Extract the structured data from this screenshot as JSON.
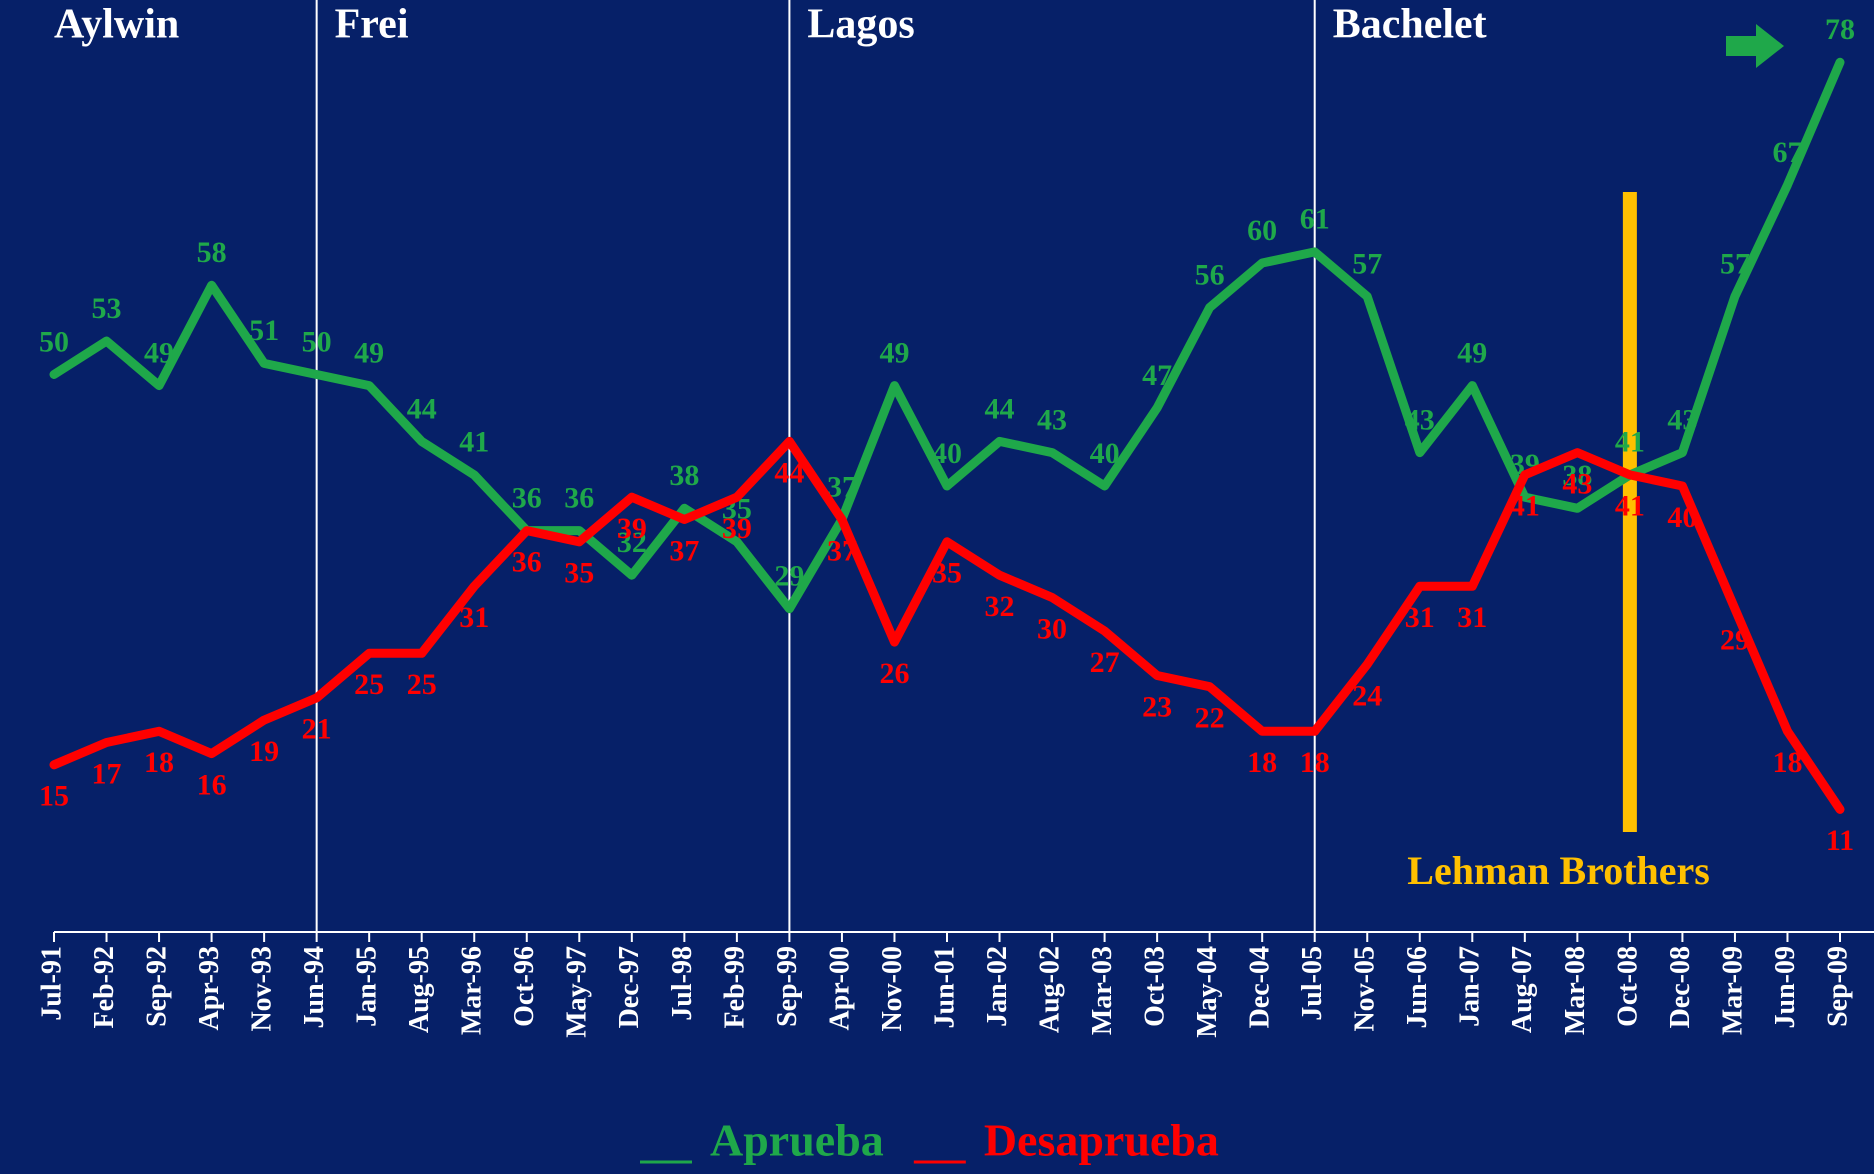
{
  "chart_data": {
    "type": "line",
    "categories": [
      "Jul-91",
      "Feb-92",
      "Sep-92",
      "Apr-93",
      "Nov-93",
      "Jun-94",
      "Jan-95",
      "Aug-95",
      "Mar-96",
      "Oct-96",
      "May-97",
      "Dec-97",
      "Jul-98",
      "Feb-99",
      "Sep-99",
      "Apr-00",
      "Nov-00",
      "Jun-01",
      "Jan-02",
      "Aug-02",
      "Mar-03",
      "Oct-03",
      "May-04",
      "Dec-04",
      "Jul-05",
      "Nov-05",
      "Jun-06",
      "Jan-07",
      "Aug-07",
      "Mar-08",
      "Oct-08",
      "Dec-08",
      "Mar-09",
      "Jun-09",
      "Sep-09"
    ],
    "series": [
      {
        "name": "Aprueba",
        "color": "#1fa84a",
        "values": [
          50,
          53,
          49,
          58,
          51,
          50,
          49,
          44,
          41,
          36,
          36,
          32,
          38,
          35,
          29,
          37,
          49,
          40,
          44,
          43,
          40,
          47,
          56,
          60,
          61,
          57,
          43,
          49,
          39,
          38,
          41,
          43,
          57,
          67,
          78
        ]
      },
      {
        "name": "Desaprueba",
        "color": "#ff0000",
        "values": [
          15,
          17,
          18,
          16,
          19,
          21,
          25,
          25,
          31,
          36,
          35,
          39,
          37,
          39,
          44,
          37,
          26,
          35,
          32,
          30,
          27,
          23,
          22,
          18,
          18,
          24,
          31,
          31,
          41,
          43,
          41,
          40,
          29,
          18,
          11
        ]
      }
    ],
    "ylim": [
      0,
      80
    ],
    "periods": [
      {
        "name": "Aylwin",
        "start": "Jul-91"
      },
      {
        "name": "Frei",
        "start": "Jun-94"
      },
      {
        "name": "Lagos",
        "start": "Sep-99"
      },
      {
        "name": "Bachelet",
        "start": "Jul-05"
      }
    ],
    "annotations": [
      {
        "text": "Lehman Brothers",
        "x": "Oct-08",
        "color": "#ffc000"
      }
    ]
  }
}
